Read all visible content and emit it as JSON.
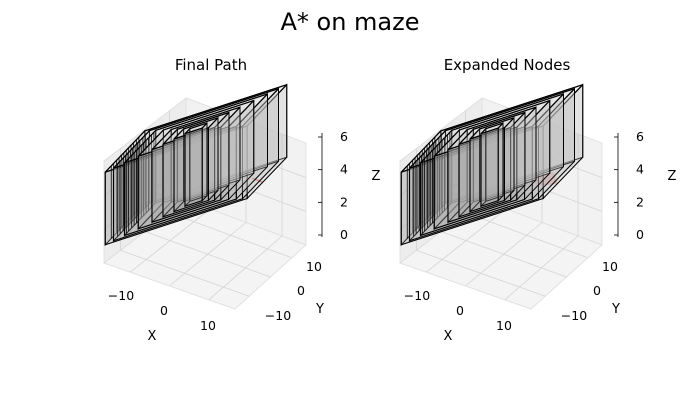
{
  "figure": {
    "title": "A* on maze"
  },
  "chart_data": [
    {
      "type": "3d-wireframe",
      "title": "Final Path",
      "xlabel": "X",
      "ylabel": "Y",
      "zlabel": "Z",
      "xticks": [
        "−10",
        "0",
        "10"
      ],
      "yticks": [
        "10",
        "0",
        "−10"
      ],
      "zticks": [
        "6",
        "4",
        "2",
        "0"
      ],
      "xlim": [
        -15,
        15
      ],
      "ylim": [
        -15,
        15
      ],
      "zlim": [
        0,
        6
      ],
      "walls": "concentric square maze walls (height 6)",
      "series": [
        {
          "kind": "start-marker",
          "color": "#4c72b0"
        },
        {
          "kind": "path",
          "color": "#d9534f"
        }
      ]
    },
    {
      "type": "3d-wireframe",
      "title": "Expanded Nodes",
      "xlabel": "X",
      "ylabel": "Y",
      "zlabel": "Z",
      "xticks": [
        "−10",
        "0",
        "10"
      ],
      "yticks": [
        "10",
        "0",
        "−10"
      ],
      "zticks": [
        "6",
        "4",
        "2",
        "0"
      ],
      "xlim": [
        -15,
        15
      ],
      "ylim": [
        -15,
        15
      ],
      "zlim": [
        0,
        6
      ],
      "walls": "concentric square maze walls (height 6)",
      "series": [
        {
          "kind": "start-marker",
          "color": "#4c72b0"
        },
        {
          "kind": "expanded-nodes",
          "color": "#d9534f"
        }
      ]
    }
  ]
}
